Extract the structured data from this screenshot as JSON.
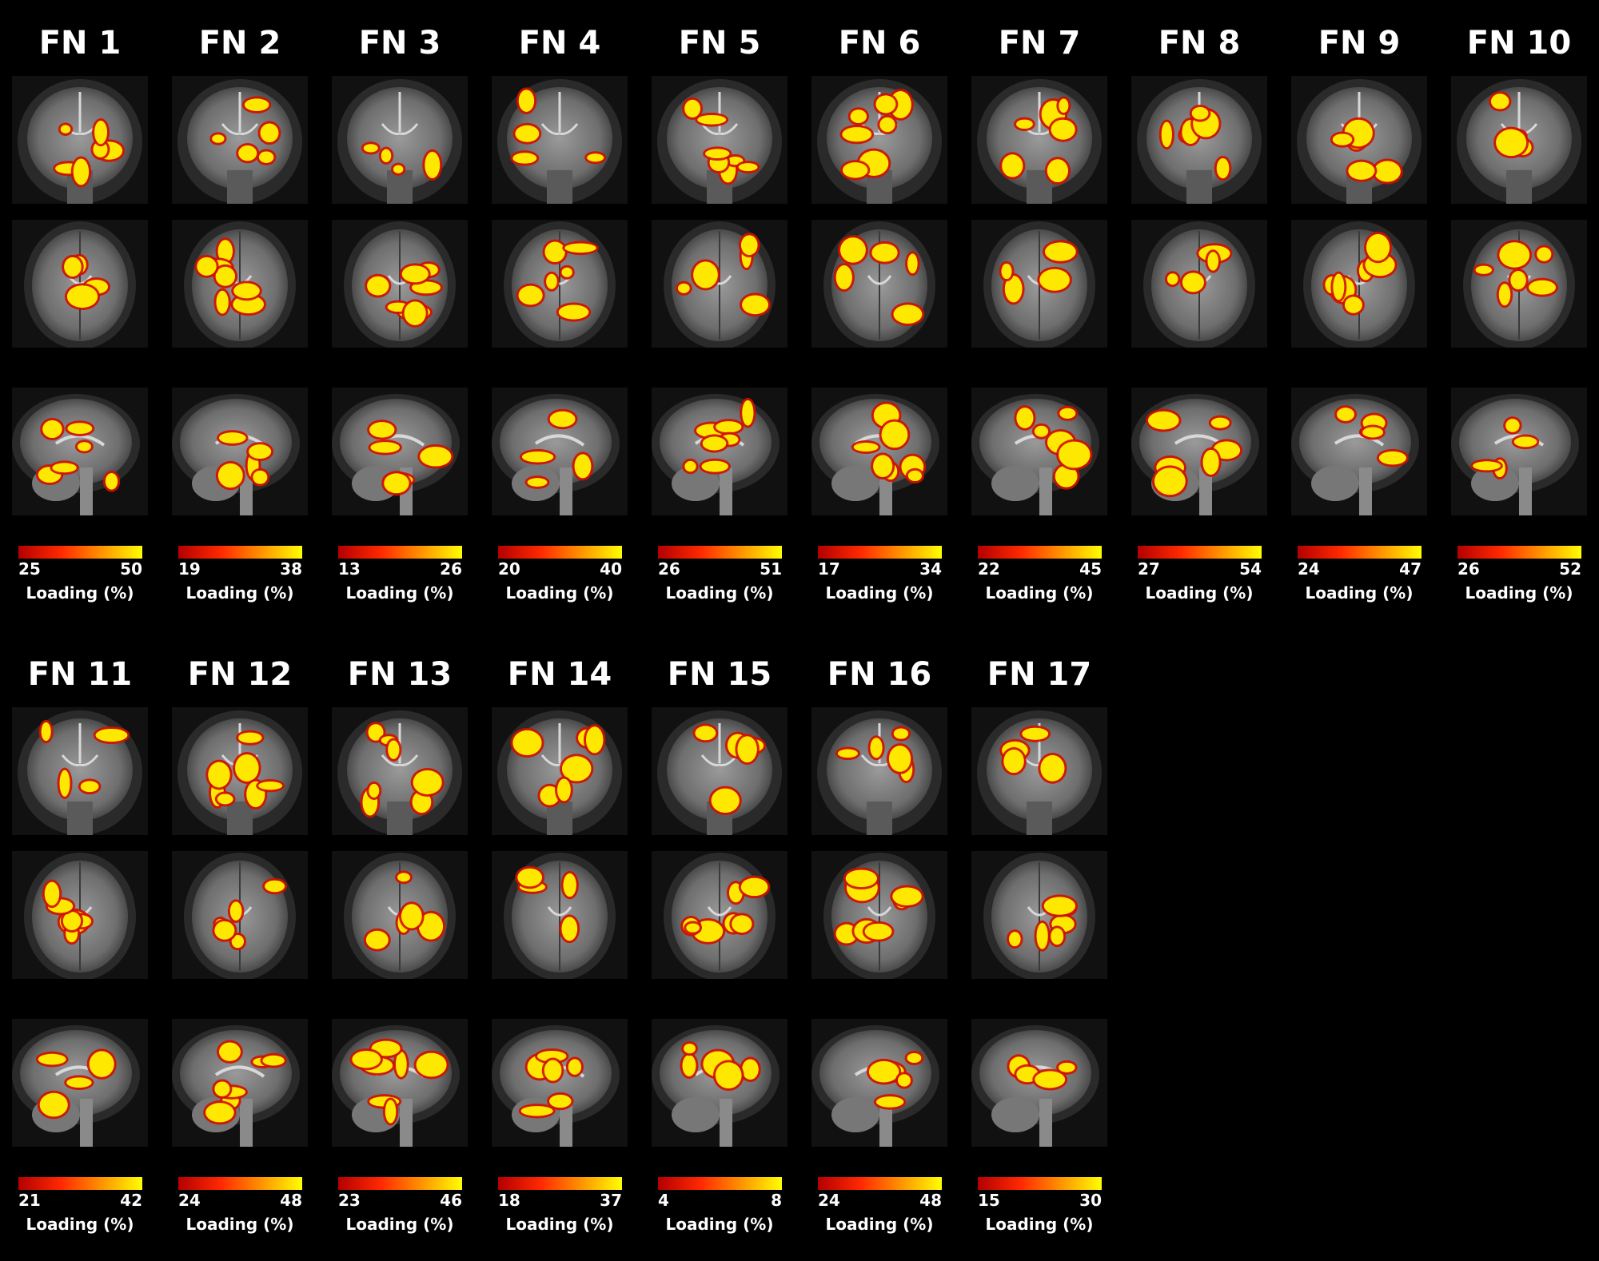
{
  "background": "#000000",
  "colorbar_colors": [
    "#b40000",
    "#ff2a00",
    "#ff8c00",
    "#ffff00"
  ],
  "colorbar_label": "Loading (%)",
  "views": [
    "coronal",
    "axial",
    "sagittal"
  ],
  "networks": [
    {
      "title": "FN 1",
      "min": "25",
      "max": "50"
    },
    {
      "title": "FN 2",
      "min": "19",
      "max": "38"
    },
    {
      "title": "FN 3",
      "min": "13",
      "max": "26"
    },
    {
      "title": "FN 4",
      "min": "20",
      "max": "40"
    },
    {
      "title": "FN 5",
      "min": "26",
      "max": "51"
    },
    {
      "title": "FN 6",
      "min": "17",
      "max": "34"
    },
    {
      "title": "FN 7",
      "min": "22",
      "max": "45"
    },
    {
      "title": "FN 8",
      "min": "27",
      "max": "54"
    },
    {
      "title": "FN 9",
      "min": "24",
      "max": "47"
    },
    {
      "title": "FN 10",
      "min": "26",
      "max": "52"
    },
    {
      "title": "FN 11",
      "min": "21",
      "max": "42"
    },
    {
      "title": "FN 12",
      "min": "24",
      "max": "48"
    },
    {
      "title": "FN 13",
      "min": "23",
      "max": "46"
    },
    {
      "title": "FN 14",
      "min": "18",
      "max": "37"
    },
    {
      "title": "FN 15",
      "min": "4",
      "max": "8"
    },
    {
      "title": "FN 16",
      "min": "24",
      "max": "48"
    },
    {
      "title": "FN 17",
      "min": "15",
      "max": "30"
    }
  ]
}
